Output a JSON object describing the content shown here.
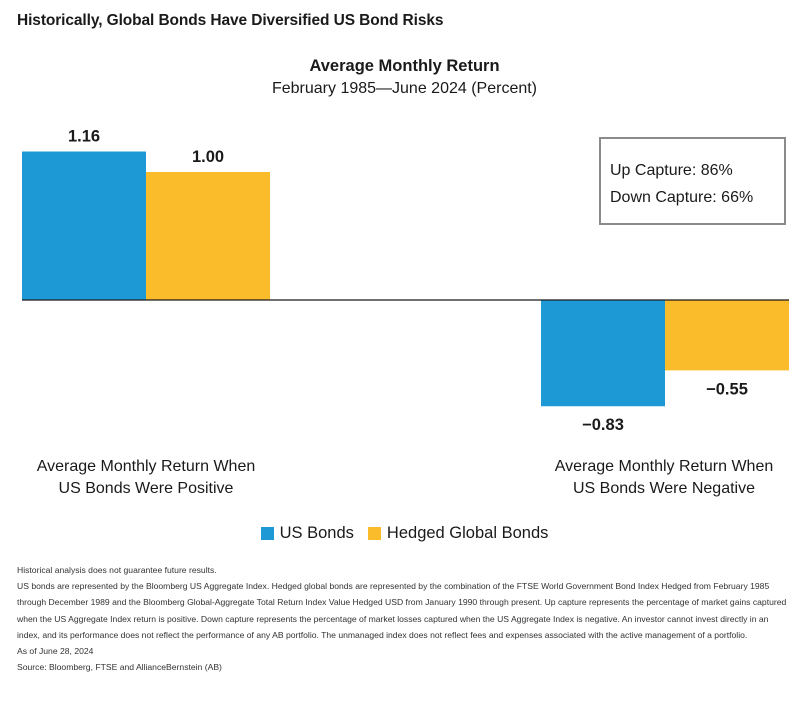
{
  "header": {
    "title": "Historically, Global Bonds Have Diversified US Bond Risks"
  },
  "chart_data": {
    "type": "bar",
    "title": "Average Monthly Return",
    "subtitle": "February 1985—June 2024 (Percent)",
    "categories": [
      [
        "Average Monthly Return When",
        "US Bonds Were Positive"
      ],
      [
        "Average Monthly Return When",
        "US Bonds Were Negative"
      ]
    ],
    "series": [
      {
        "name": "US Bonds",
        "color": "#1d9ad6",
        "values": [
          1.16,
          -0.83
        ],
        "labels": [
          "1.16",
          "−0.83"
        ]
      },
      {
        "name": "Hedged Global Bonds",
        "color": "#fbbc2b",
        "values": [
          1.0,
          -0.55
        ],
        "labels": [
          "1.00",
          "−0.55"
        ]
      }
    ],
    "ylim": [
      -0.83,
      1.16
    ],
    "grid": false,
    "legend": "bottom"
  },
  "capture_box": {
    "up": "Up Capture: 86%",
    "down": "Down Capture: 66%"
  },
  "notes": [
    "Historical analysis does not guarantee future results.",
    "US bonds are represented by the Bloomberg US Aggregate Index. Hedged global bonds are represented by the combination of the FTSE World Government Bond Index Hedged from February 1985 through December 1989 and the Bloomberg Global-Aggregate Total Return Index Value Hedged USD from January 1990 through present. Up capture represents the percentage of market gains captured when the US Aggregate Index return is positive. Down capture represents the percentage of market losses captured when the US Aggregate Index is negative. An investor cannot invest directly in an index, and its performance does not reflect the performance of any AB portfolio. The unmanaged index does not reflect fees and expenses associated with the active management of a portfolio.",
    "As of June 28, 2024",
    "Source: Bloomberg, FTSE and AllianceBernstein (AB)"
  ]
}
